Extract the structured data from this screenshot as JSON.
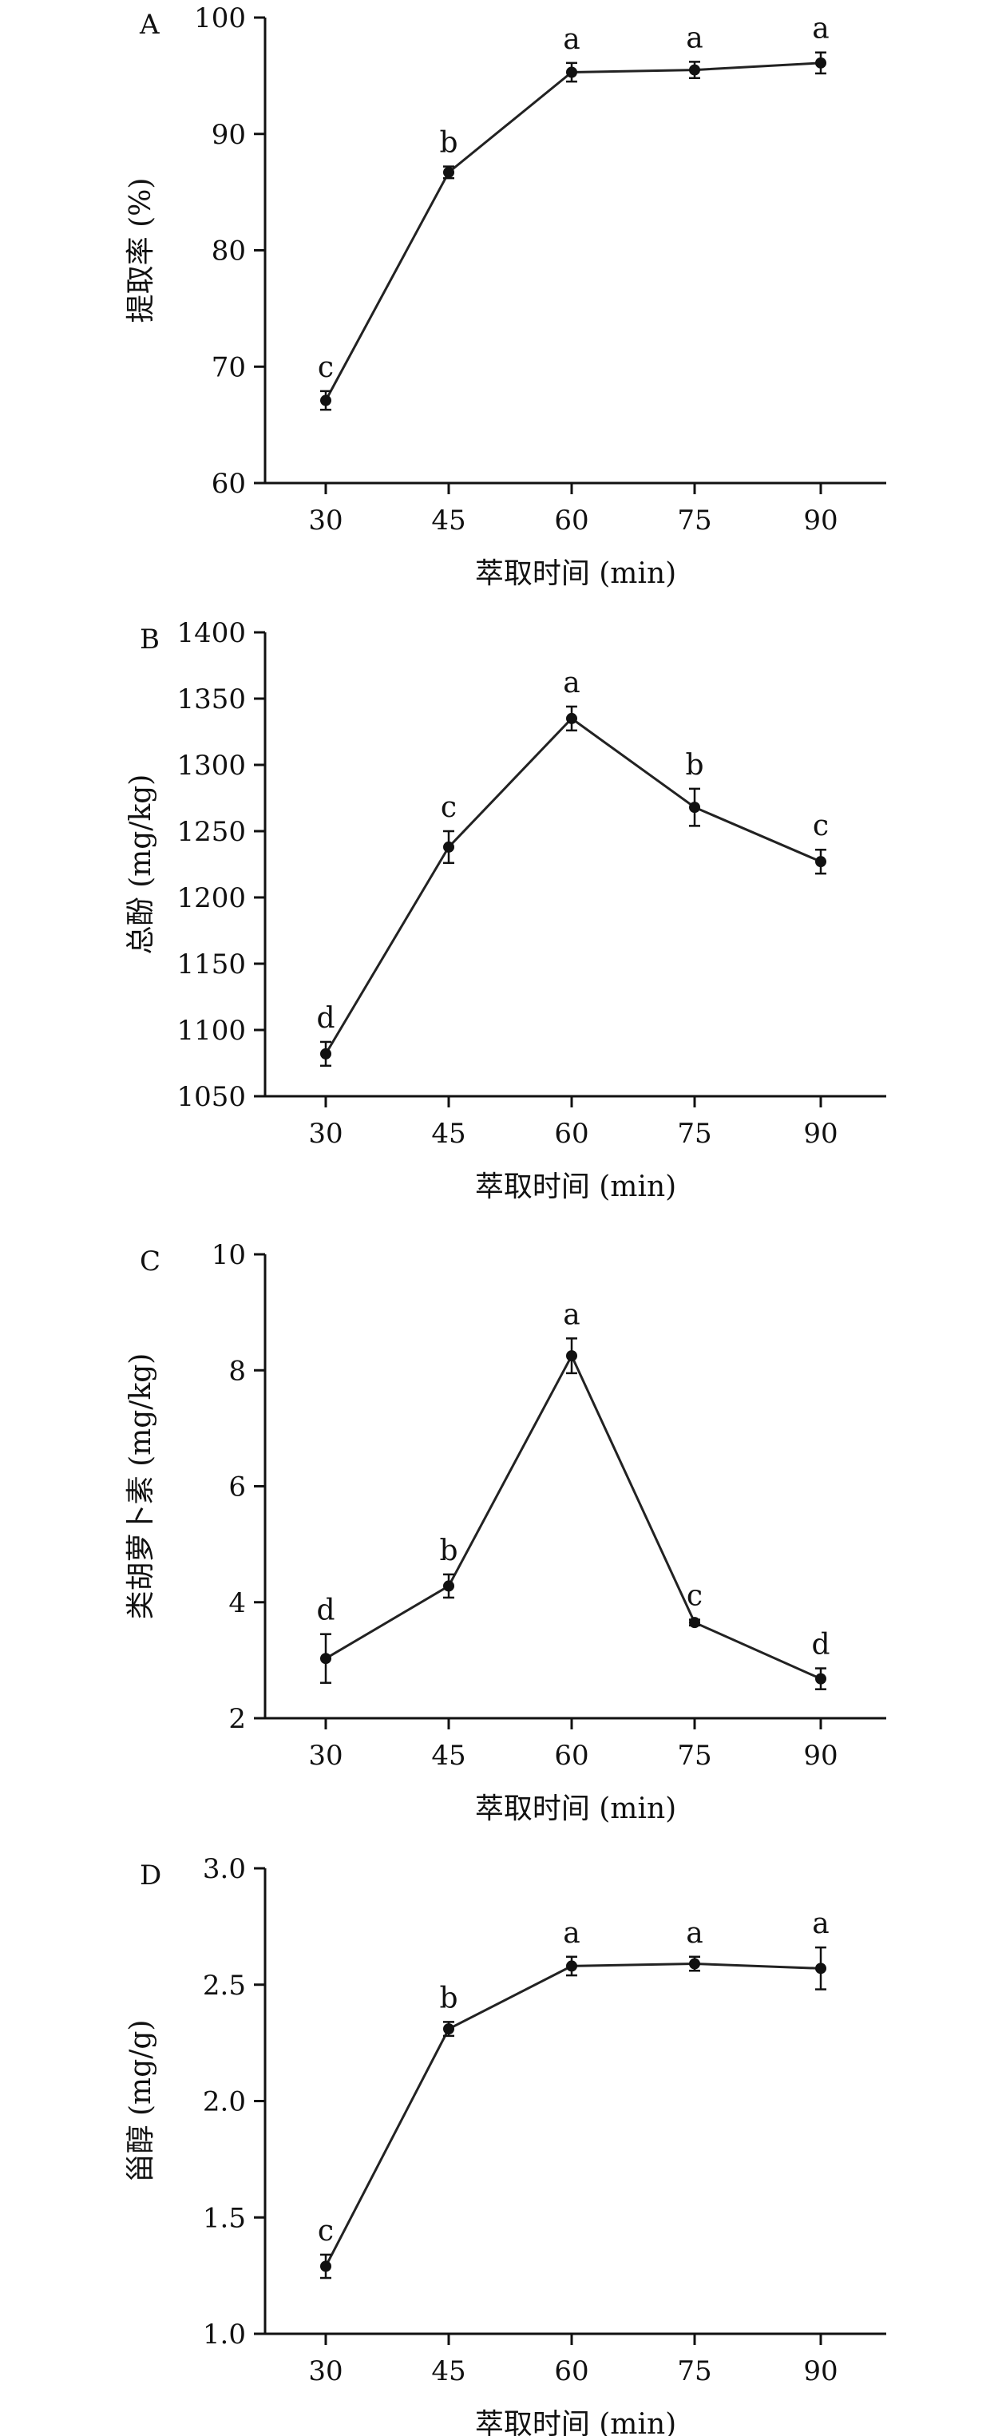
{
  "chart_data": [
    {
      "type": "line",
      "panel_label": "A",
      "x": [
        30,
        45,
        60,
        75,
        90
      ],
      "xlabel": "萃取时间 (min)",
      "ylabel": "提取率 (%)",
      "xticks": [
        "30",
        "45",
        "60",
        "75",
        "90"
      ],
      "yticks": [
        "60",
        "70",
        "80",
        "90",
        "100"
      ],
      "ylim": [
        60,
        100
      ],
      "values": [
        67.1,
        86.7,
        95.3,
        95.5,
        96.1
      ],
      "errors": [
        0.8,
        0.5,
        0.8,
        0.7,
        0.9
      ],
      "labels": [
        "c",
        "b",
        "a",
        "a",
        "a"
      ]
    },
    {
      "type": "line",
      "panel_label": "B",
      "x": [
        30,
        45,
        60,
        75,
        90
      ],
      "xlabel": "萃取时间 (min)",
      "ylabel": "总酚 (mg/kg)",
      "xticks": [
        "30",
        "45",
        "60",
        "75",
        "90"
      ],
      "yticks": [
        "1050",
        "1100",
        "1150",
        "1200",
        "1250",
        "1300",
        "1350",
        "1400"
      ],
      "ylim": [
        1050,
        1400
      ],
      "values": [
        1082,
        1238,
        1335,
        1268,
        1227
      ],
      "errors": [
        9,
        12,
        9,
        14,
        9
      ],
      "labels": [
        "d",
        "c",
        "a",
        "b",
        "c"
      ]
    },
    {
      "type": "line",
      "panel_label": "C",
      "x": [
        30,
        45,
        60,
        75,
        90
      ],
      "xlabel": "萃取时间 (min)",
      "ylabel": "类胡萝卜素 (mg/kg)",
      "xticks": [
        "30",
        "45",
        "60",
        "75",
        "90"
      ],
      "yticks": [
        "2",
        "4",
        "6",
        "8",
        "10"
      ],
      "ylim": [
        2,
        10
      ],
      "values": [
        3.03,
        4.28,
        8.25,
        3.65,
        2.68
      ],
      "errors": [
        0.42,
        0.2,
        0.3,
        0.05,
        0.18
      ],
      "labels": [
        "d",
        "b",
        "a",
        "c",
        "d"
      ]
    },
    {
      "type": "line",
      "panel_label": "D",
      "x": [
        30,
        45,
        60,
        75,
        90
      ],
      "xlabel": "萃取时间 (min)",
      "ylabel": "甾醇 (mg/g)",
      "xticks": [
        "30",
        "45",
        "60",
        "75",
        "90"
      ],
      "yticks": [
        "1.0",
        "1.5",
        "2.0",
        "2.5",
        "3.0"
      ],
      "ylim": [
        1.0,
        3.0
      ],
      "values": [
        1.29,
        2.31,
        2.58,
        2.59,
        2.57
      ],
      "errors": [
        0.05,
        0.03,
        0.04,
        0.03,
        0.09
      ],
      "labels": [
        "c",
        "b",
        "a",
        "a",
        "a"
      ]
    }
  ]
}
